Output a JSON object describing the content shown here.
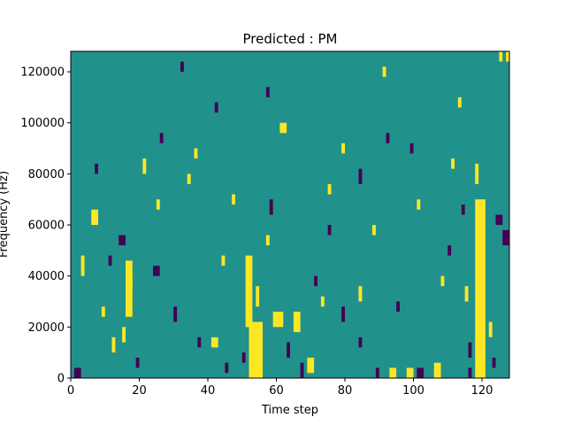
{
  "chart_data": {
    "type": "heatmap",
    "title": "Predicted : PM",
    "xlabel": "Time step",
    "ylabel": "Frequency (Hz)",
    "xlim": [
      0,
      128
    ],
    "ylim": [
      0,
      128000
    ],
    "x_ticks": [
      0,
      20,
      40,
      60,
      80,
      100,
      120
    ],
    "y_ticks": [
      0,
      20000,
      40000,
      60000,
      80000,
      100000,
      120000
    ],
    "n_time_steps": 128,
    "n_freq_bins": 128,
    "colormap": "viridis",
    "levels": [
      -1,
      0,
      1
    ],
    "colors": {
      "low": "#440154",
      "mid": "#21918c",
      "high": "#fde725"
    },
    "background_value": 0,
    "grid": false,
    "legend": "none",
    "high_cells": [
      {
        "t": [
          52,
          56
        ],
        "f": [
          0,
          22000
        ]
      },
      {
        "t": [
          51,
          53
        ],
        "f": [
          20000,
          48000
        ]
      },
      {
        "t": [
          54,
          55
        ],
        "f": [
          28000,
          36000
        ]
      },
      {
        "t": [
          16,
          18
        ],
        "f": [
          24000,
          46000
        ]
      },
      {
        "t": [
          15,
          16
        ],
        "f": [
          14000,
          20000
        ]
      },
      {
        "t": [
          17,
          18
        ],
        "f": [
          34000,
          40000
        ]
      },
      {
        "t": [
          118,
          121
        ],
        "f": [
          0,
          70000
        ]
      },
      {
        "t": [
          118,
          119
        ],
        "f": [
          76000,
          84000
        ]
      },
      {
        "t": [
          115,
          116
        ],
        "f": [
          30000,
          36000
        ]
      },
      {
        "t": [
          59,
          62
        ],
        "f": [
          20000,
          26000
        ]
      },
      {
        "t": [
          65,
          67
        ],
        "f": [
          18000,
          26000
        ]
      },
      {
        "t": [
          106,
          108
        ],
        "f": [
          0,
          6000
        ]
      },
      {
        "t": [
          69,
          71
        ],
        "f": [
          2000,
          8000
        ]
      },
      {
        "t": [
          84,
          85
        ],
        "f": [
          30000,
          36000
        ]
      },
      {
        "t": [
          93,
          95
        ],
        "f": [
          0,
          4000
        ]
      },
      {
        "t": [
          98,
          100
        ],
        "f": [
          0,
          4000
        ]
      },
      {
        "t": [
          3,
          4
        ],
        "f": [
          40000,
          48000
        ]
      },
      {
        "t": [
          6,
          8
        ],
        "f": [
          60000,
          66000
        ]
      },
      {
        "t": [
          12,
          13
        ],
        "f": [
          10000,
          16000
        ]
      },
      {
        "t": [
          21,
          22
        ],
        "f": [
          80000,
          86000
        ]
      },
      {
        "t": [
          25,
          26
        ],
        "f": [
          66000,
          70000
        ]
      },
      {
        "t": [
          36,
          37
        ],
        "f": [
          86000,
          90000
        ]
      },
      {
        "t": [
          41,
          43
        ],
        "f": [
          12000,
          16000
        ]
      },
      {
        "t": [
          47,
          48
        ],
        "f": [
          68000,
          72000
        ]
      },
      {
        "t": [
          57,
          58
        ],
        "f": [
          52000,
          56000
        ]
      },
      {
        "t": [
          73,
          74
        ],
        "f": [
          28000,
          32000
        ]
      },
      {
        "t": [
          79,
          80
        ],
        "f": [
          88000,
          92000
        ]
      },
      {
        "t": [
          88,
          89
        ],
        "f": [
          56000,
          60000
        ]
      },
      {
        "t": [
          101,
          102
        ],
        "f": [
          66000,
          70000
        ]
      },
      {
        "t": [
          111,
          112
        ],
        "f": [
          82000,
          86000
        ]
      },
      {
        "t": [
          125,
          126
        ],
        "f": [
          124000,
          128000
        ]
      },
      {
        "t": [
          127,
          128
        ],
        "f": [
          124000,
          128000
        ]
      },
      {
        "t": [
          91,
          92
        ],
        "f": [
          118000,
          122000
        ]
      },
      {
        "t": [
          34,
          35
        ],
        "f": [
          76000,
          80000
        ]
      },
      {
        "t": [
          9,
          10
        ],
        "f": [
          24000,
          28000
        ]
      },
      {
        "t": [
          61,
          63
        ],
        "f": [
          96000,
          100000
        ]
      },
      {
        "t": [
          113,
          114
        ],
        "f": [
          106000,
          110000
        ]
      },
      {
        "t": [
          44,
          45
        ],
        "f": [
          44000,
          48000
        ]
      },
      {
        "t": [
          75,
          76
        ],
        "f": [
          72000,
          76000
        ]
      },
      {
        "t": [
          122,
          123
        ],
        "f": [
          16000,
          22000
        ]
      },
      {
        "t": [
          108,
          109
        ],
        "f": [
          36000,
          40000
        ]
      }
    ],
    "low_cells": [
      {
        "t": [
          1,
          3
        ],
        "f": [
          0,
          4000
        ]
      },
      {
        "t": [
          11,
          12
        ],
        "f": [
          44000,
          48000
        ]
      },
      {
        "t": [
          14,
          16
        ],
        "f": [
          52000,
          56000
        ]
      },
      {
        "t": [
          19,
          20
        ],
        "f": [
          4000,
          8000
        ]
      },
      {
        "t": [
          24,
          26
        ],
        "f": [
          40000,
          44000
        ]
      },
      {
        "t": [
          30,
          31
        ],
        "f": [
          22000,
          28000
        ]
      },
      {
        "t": [
          37,
          38
        ],
        "f": [
          12000,
          16000
        ]
      },
      {
        "t": [
          45,
          46
        ],
        "f": [
          2000,
          6000
        ]
      },
      {
        "t": [
          63,
          64
        ],
        "f": [
          8000,
          14000
        ]
      },
      {
        "t": [
          67,
          68
        ],
        "f": [
          0,
          6000
        ]
      },
      {
        "t": [
          71,
          72
        ],
        "f": [
          36000,
          40000
        ]
      },
      {
        "t": [
          75,
          76
        ],
        "f": [
          56000,
          60000
        ]
      },
      {
        "t": [
          79,
          80
        ],
        "f": [
          22000,
          28000
        ]
      },
      {
        "t": [
          84,
          85
        ],
        "f": [
          12000,
          16000
        ]
      },
      {
        "t": [
          89,
          90
        ],
        "f": [
          0,
          4000
        ]
      },
      {
        "t": [
          95,
          96
        ],
        "f": [
          26000,
          30000
        ]
      },
      {
        "t": [
          101,
          103
        ],
        "f": [
          0,
          4000
        ]
      },
      {
        "t": [
          110,
          111
        ],
        "f": [
          48000,
          52000
        ]
      },
      {
        "t": [
          124,
          126
        ],
        "f": [
          60000,
          64000
        ]
      },
      {
        "t": [
          126,
          128
        ],
        "f": [
          52000,
          58000
        ]
      },
      {
        "t": [
          123,
          124
        ],
        "f": [
          4000,
          8000
        ]
      },
      {
        "t": [
          84,
          85
        ],
        "f": [
          76000,
          82000
        ]
      },
      {
        "t": [
          92,
          93
        ],
        "f": [
          92000,
          96000
        ]
      },
      {
        "t": [
          57,
          58
        ],
        "f": [
          110000,
          114000
        ]
      },
      {
        "t": [
          32,
          33
        ],
        "f": [
          120000,
          124000
        ]
      },
      {
        "t": [
          116,
          117
        ],
        "f": [
          0,
          4000
        ]
      },
      {
        "t": [
          116,
          117
        ],
        "f": [
          8000,
          14000
        ]
      },
      {
        "t": [
          58,
          59
        ],
        "f": [
          64000,
          70000
        ]
      },
      {
        "t": [
          7,
          8
        ],
        "f": [
          80000,
          84000
        ]
      },
      {
        "t": [
          26,
          27
        ],
        "f": [
          92000,
          96000
        ]
      },
      {
        "t": [
          42,
          43
        ],
        "f": [
          104000,
          108000
        ]
      },
      {
        "t": [
          50,
          51
        ],
        "f": [
          6000,
          10000
        ]
      },
      {
        "t": [
          99,
          100
        ],
        "f": [
          88000,
          92000
        ]
      },
      {
        "t": [
          114,
          115
        ],
        "f": [
          64000,
          68000
        ]
      }
    ]
  }
}
